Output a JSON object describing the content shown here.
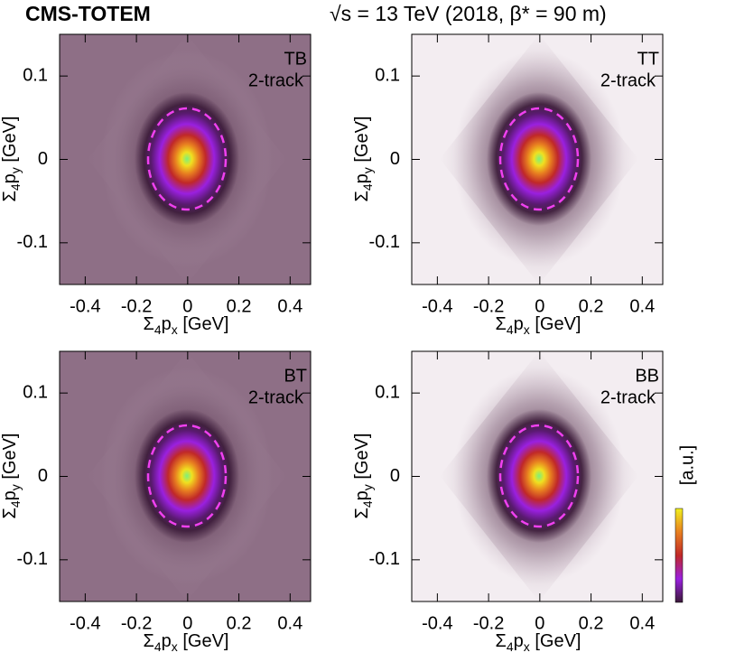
{
  "header": {
    "experiment": "CMS-TOTEM",
    "conditions": "√s = 13 TeV (2018, β* = 90 m)"
  },
  "colorbar": {
    "label": "[a.u.]"
  },
  "chart_data": [
    {
      "type": "heatmap",
      "label": "TB",
      "sublabel": "2-track",
      "background_color": "#8e6f86",
      "x_label_parts": [
        "Σ",
        "4",
        "p",
        "x",
        " [GeV]"
      ],
      "y_label_parts": [
        "Σ",
        "4",
        "p",
        "y",
        " [GeV]"
      ],
      "xlim": [
        -0.5,
        0.48
      ],
      "ylim": [
        -0.15,
        0.15
      ],
      "xticks": [
        -0.4,
        -0.2,
        0,
        0.2,
        0.4
      ],
      "yticks": [
        -0.1,
        0,
        0.1
      ]
    },
    {
      "type": "heatmap",
      "label": "TT",
      "sublabel": "2-track",
      "background_color": "#f3edf1",
      "x_label_parts": [
        "Σ",
        "4",
        "p",
        "x",
        " [GeV]"
      ],
      "y_label_parts": [
        "Σ",
        "4",
        "p",
        "y",
        " [GeV]"
      ],
      "xlim": [
        -0.5,
        0.48
      ],
      "ylim": [
        -0.15,
        0.15
      ],
      "xticks": [
        -0.4,
        -0.2,
        0,
        0.2,
        0.4
      ],
      "yticks": [
        -0.1,
        0,
        0.1
      ]
    },
    {
      "type": "heatmap",
      "label": "BT",
      "sublabel": "2-track",
      "background_color": "#8e6f86",
      "x_label_parts": [
        "Σ",
        "4",
        "p",
        "x",
        " [GeV]"
      ],
      "y_label_parts": [
        "Σ",
        "4",
        "p",
        "y",
        " [GeV]"
      ],
      "xlim": [
        -0.5,
        0.48
      ],
      "ylim": [
        -0.15,
        0.15
      ],
      "xticks": [
        -0.4,
        -0.2,
        0,
        0.2,
        0.4
      ],
      "yticks": [
        -0.1,
        0,
        0.1
      ]
    },
    {
      "type": "heatmap",
      "label": "BB",
      "sublabel": "2-track",
      "background_color": "#f3edf1",
      "x_label_parts": [
        "Σ",
        "4",
        "p",
        "x",
        " [GeV]"
      ],
      "y_label_parts": [
        "Σ",
        "4",
        "p",
        "y",
        " [GeV]"
      ],
      "xlim": [
        -0.5,
        0.48
      ],
      "ylim": [
        -0.15,
        0.15
      ],
      "xticks": [
        -0.4,
        -0.2,
        0,
        0.2,
        0.4
      ],
      "yticks": [
        -0.1,
        0,
        0.1
      ]
    }
  ]
}
